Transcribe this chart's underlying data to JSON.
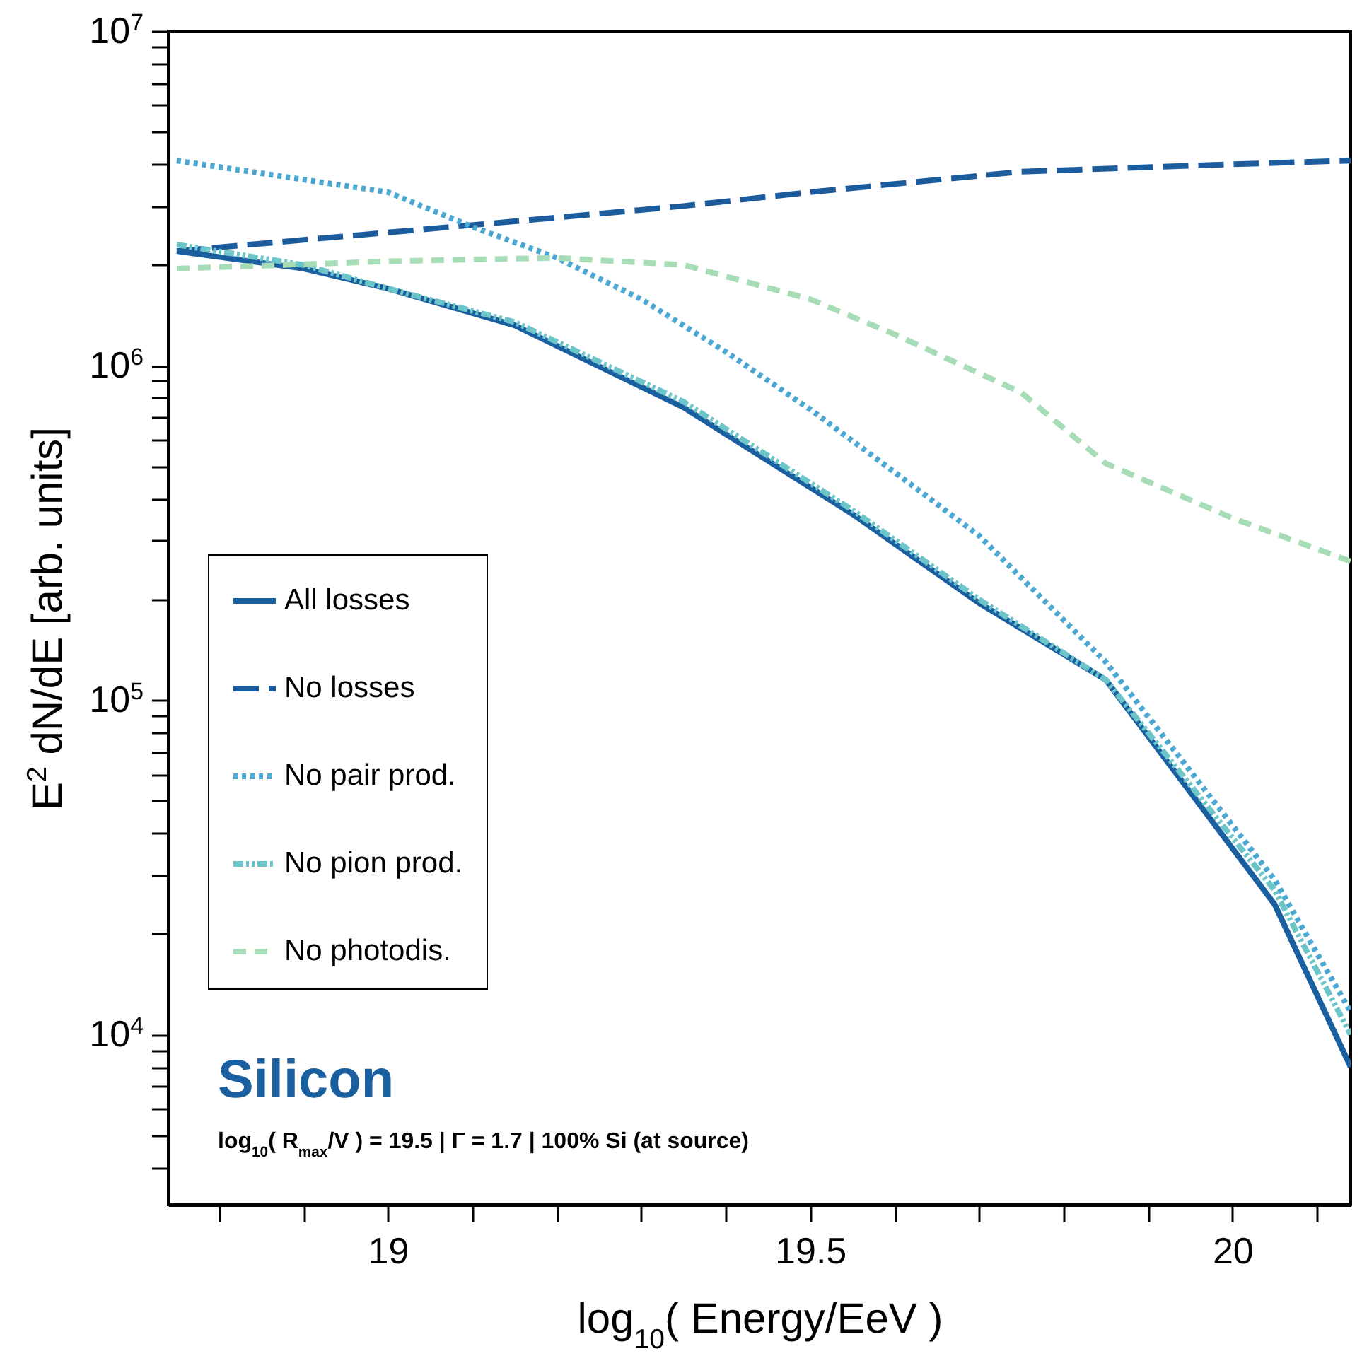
{
  "chart_data": {
    "type": "line",
    "xlabel": "log$_{10}$( Energy/EeV )",
    "ylabel": "E$^{2}$ dN/dE [arb. units]",
    "x": [
      18.75,
      18.9,
      19.0,
      19.15,
      19.35,
      19.55,
      19.7,
      19.85,
      20.05,
      20.14
    ],
    "series": [
      {
        "name": "All losses",
        "color": "#1a5fa0",
        "line_style": "solid",
        "values": [
          2200000,
          1950000,
          1700000,
          1320000,
          750000,
          360000,
          195000,
          115000,
          24500,
          8000
        ]
      },
      {
        "name": "No losses",
        "color": "#1d5c9c",
        "line_style": "longdashed",
        "x": [
          18.75,
          19.0,
          19.15,
          19.35,
          19.5,
          19.75,
          20.0,
          20.14
        ],
        "values": [
          2200000,
          2500000,
          2700000,
          3000000,
          3300000,
          3800000,
          4000000,
          4100000
        ]
      },
      {
        "name": "No pair prod.",
        "color": "#4aa8d2",
        "line_style": "dotted",
        "x": [
          18.75,
          19.0,
          19.1,
          19.2,
          19.3,
          19.4,
          19.5,
          19.6,
          19.7,
          19.85,
          20.05,
          20.14
        ],
        "values": [
          4100000,
          3300000,
          2600000,
          2100000,
          1580000,
          1100000,
          740000,
          480000,
          310000,
          130000,
          29000,
          11700
        ]
      },
      {
        "name": "No pion prod.",
        "color": "#6cc5c9",
        "line_style": "dashdot",
        "values": [
          2300000,
          2000000,
          1700000,
          1350000,
          780000,
          370000,
          200000,
          115000,
          27000,
          10000
        ]
      },
      {
        "name": "No photodis.",
        "color": "#a6dcb6",
        "line_style": "dashed",
        "x": [
          18.75,
          19.0,
          19.2,
          19.35,
          19.5,
          19.6,
          19.75,
          19.85,
          20.0,
          20.14
        ],
        "values": [
          1950000,
          2050000,
          2100000,
          2000000,
          1580000,
          1240000,
          830000,
          510000,
          350000,
          260000
        ]
      }
    ],
    "xlim": [
      18.74,
      20.14
    ],
    "xticks": [
      {
        "value": 18.8,
        "label": null
      },
      {
        "value": 18.9,
        "label": null
      },
      19,
      {
        "value": 19.1,
        "label": null
      },
      {
        "value": 19.2,
        "label": null
      },
      {
        "value": 19.3,
        "label": null
      },
      {
        "value": 19.4,
        "label": null
      },
      19.5,
      {
        "value": 19.6,
        "label": null
      },
      {
        "value": 19.7,
        "label": null
      },
      {
        "value": 19.8,
        "label": null
      },
      {
        "value": 19.9,
        "label": null
      },
      20,
      {
        "value": 20.1,
        "label": null
      }
    ],
    "log": "y",
    "ylim": [
      3100,
      10000000
    ],
    "yticks": [
      {
        "value": 4000,
        "label": null
      },
      {
        "value": 5000,
        "label": null
      },
      {
        "value": 6000,
        "label": null
      },
      {
        "value": 7000,
        "label": null
      },
      {
        "value": 8000,
        "label": null
      },
      {
        "value": 9000,
        "label": null
      },
      {
        "value": 10000,
        "label": "10$^{4}$"
      },
      {
        "value": 20000,
        "label": null
      },
      {
        "value": 30000,
        "label": null
      },
      {
        "value": 40000,
        "label": null
      },
      {
        "value": 50000,
        "label": null
      },
      {
        "value": 60000,
        "label": null
      },
      {
        "value": 70000,
        "label": null
      },
      {
        "value": 80000,
        "label": null
      },
      {
        "value": 90000,
        "label": null
      },
      {
        "value": 100000,
        "label": "10$^{5}$"
      },
      {
        "value": 200000,
        "label": null
      },
      {
        "value": 300000,
        "label": null
      },
      {
        "value": 400000,
        "label": null
      },
      {
        "value": 500000,
        "label": null
      },
      {
        "value": 600000,
        "label": null
      },
      {
        "value": 700000,
        "label": null
      },
      {
        "value": 800000,
        "label": null
      },
      {
        "value": 900000,
        "label": null
      },
      {
        "value": 1000000,
        "label": "10$^{6}$"
      },
      {
        "value": 2000000,
        "label": null
      },
      {
        "value": 3000000,
        "label": null
      },
      {
        "value": 4000000,
        "label": null
      },
      {
        "value": 5000000,
        "label": null
      },
      {
        "value": 6000000,
        "label": null
      },
      {
        "value": 7000000,
        "label": null
      },
      {
        "value": 8000000,
        "label": null
      },
      {
        "value": 9000000,
        "label": null
      },
      {
        "value": 10000000,
        "label": "10$^{7}$"
      }
    ],
    "grid": false,
    "legend": "bottom left",
    "annotations": [
      "Silicon",
      "log$_{10}$( R$_{max}$/V ) = 19.5 | Γ = 1.7 | 100% Si (at source)"
    ]
  }
}
